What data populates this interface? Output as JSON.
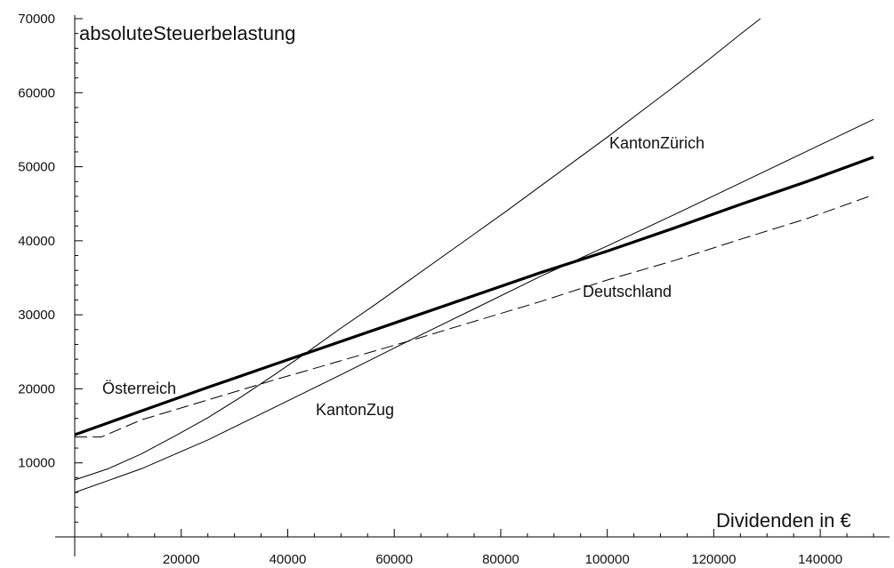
{
  "chart_data": {
    "type": "line",
    "xlabel": "Dividenden  in  €",
    "ylabel": "absoluteSteuerbelastung",
    "xlim": [
      0,
      150000
    ],
    "ylim": [
      0,
      70000
    ],
    "x_ticks": [
      20000,
      40000,
      60000,
      80000,
      100000,
      120000,
      140000
    ],
    "y_ticks": [
      10000,
      20000,
      30000,
      40000,
      50000,
      60000,
      70000
    ],
    "grid": false,
    "series": [
      {
        "name": "Österreich",
        "style": "thick",
        "x": [
          0,
          12500,
          25000,
          37500,
          50000,
          62500,
          75000,
          87500,
          100000,
          112500,
          125000,
          137500,
          150000
        ],
        "y": [
          13800,
          17000,
          20200,
          23300,
          26400,
          29500,
          32600,
          35700,
          38600,
          41700,
          44900,
          48000,
          51300
        ]
      },
      {
        "name": "Deutschland",
        "style": "dashed",
        "x": [
          0,
          5000,
          12500,
          25000,
          37500,
          50000,
          62500,
          75000,
          87500,
          100000,
          112500,
          125000,
          137500,
          150000
        ],
        "y": [
          13500,
          13500,
          15800,
          18500,
          21200,
          23800,
          26400,
          29100,
          31800,
          34700,
          37300,
          40200,
          43000,
          46200
        ]
      },
      {
        "name": "KantonZürich",
        "style": "thin",
        "x": [
          0,
          6250,
          12500,
          18750,
          25000,
          31250,
          37500,
          43750,
          50000,
          56250,
          62500,
          68750,
          75000,
          81250,
          87500,
          93750,
          100000,
          106250,
          112500,
          118750,
          125000,
          128750
        ],
        "y": [
          7700,
          9200,
          11200,
          13600,
          16100,
          18900,
          21900,
          25000,
          28200,
          31300,
          34500,
          37700,
          40900,
          44100,
          47400,
          50700,
          54000,
          57400,
          60800,
          64300,
          67900,
          70000
        ]
      },
      {
        "name": "KantonZug",
        "style": "thin",
        "x": [
          0,
          12500,
          25000,
          37500,
          50000,
          62500,
          75000,
          87500,
          100000,
          112500,
          125000,
          137500,
          150000
        ],
        "y": [
          6000,
          9200,
          13100,
          17500,
          21900,
          26400,
          30800,
          35200,
          39300,
          43500,
          47800,
          52100,
          56400
        ]
      }
    ]
  }
}
